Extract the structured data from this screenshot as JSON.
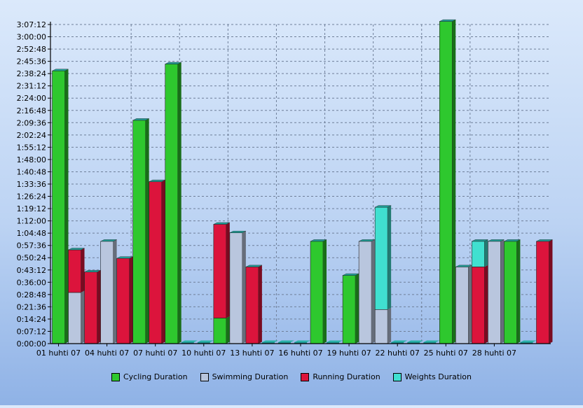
{
  "chart_data": {
    "type": "bar",
    "stacked": true,
    "x_tick_labels": [
      "01 huhti 07",
      "04 huhti 07",
      "07 huhti 07",
      "10 huhti 07",
      "13 huhti 07",
      "16 huhti 07",
      "19 huhti 07",
      "22 huhti 07",
      "25 huhti 07",
      "28 huhti 07"
    ],
    "x_tick_every": 3,
    "categories": [
      "01",
      "02",
      "03",
      "04",
      "05",
      "06",
      "07",
      "08",
      "09",
      "10",
      "11",
      "12",
      "13",
      "14",
      "15",
      "16",
      "17",
      "18",
      "19",
      "20",
      "21",
      "22",
      "23",
      "24",
      "25",
      "26",
      "27",
      "28"
    ],
    "y_tick_labels": [
      "0:00:00",
      "0:07:12",
      "0:14:24",
      "0:21:36",
      "0:28:48",
      "0:36:00",
      "0:43:12",
      "0:50:24",
      "0:57:36",
      "1:04:48",
      "1:12:00",
      "1:19:12",
      "1:26:24",
      "1:33:36",
      "1:40:48",
      "1:48:00",
      "1:55:12",
      "2:02:24",
      "2:09:36",
      "2:16:48",
      "2:24:00",
      "2:31:12",
      "2:38:24",
      "2:45:36",
      "2:52:48",
      "3:00:00",
      "3:07:12"
    ],
    "y_unit": "minutes",
    "ylim": [
      0,
      187.2
    ],
    "y_tick_step": 7.2,
    "grid": true,
    "legend_position": "bottom",
    "series": [
      {
        "name": "Cycling Duration",
        "color": "#2ec82e",
        "values": [
          160,
          0,
          0,
          0,
          0,
          131,
          0,
          164,
          0,
          0,
          15,
          0,
          0,
          0,
          0,
          0,
          60,
          0,
          40,
          0,
          0,
          0,
          0,
          0,
          189,
          0,
          0,
          0
        ]
      },
      {
        "name": "Swimming Duration",
        "color": "#b9c6de",
        "values": [
          0,
          30,
          0,
          60,
          0,
          0,
          0,
          0,
          0,
          0,
          0,
          65,
          0,
          0,
          0,
          0,
          0,
          0,
          0,
          60,
          20,
          0,
          0,
          0,
          0,
          45,
          0,
          60
        ]
      },
      {
        "name": "Running Duration",
        "color": "#dc143c",
        "values": [
          0,
          25,
          42,
          0,
          50,
          0,
          95,
          0,
          0,
          0,
          55,
          0,
          45,
          0,
          0,
          0,
          0,
          0,
          0,
          0,
          0,
          0,
          0,
          0,
          0,
          0,
          45,
          0
        ]
      },
      {
        "name": "Weights Duration",
        "color": "#40e0d0",
        "values": [
          0,
          0,
          0,
          0,
          0,
          0,
          0,
          0,
          0,
          0,
          0,
          0,
          0,
          0,
          0,
          0,
          0,
          0,
          0,
          0,
          60,
          0,
          0,
          0,
          0,
          0,
          15,
          0
        ]
      }
    ],
    "extra_tail": {
      "comment_free": true,
      "cycling": [
        60,
        0,
        0
      ],
      "swimming": [
        0,
        0,
        0
      ],
      "running": [
        0,
        0,
        60
      ],
      "weights": [
        0,
        0,
        0
      ]
    }
  }
}
